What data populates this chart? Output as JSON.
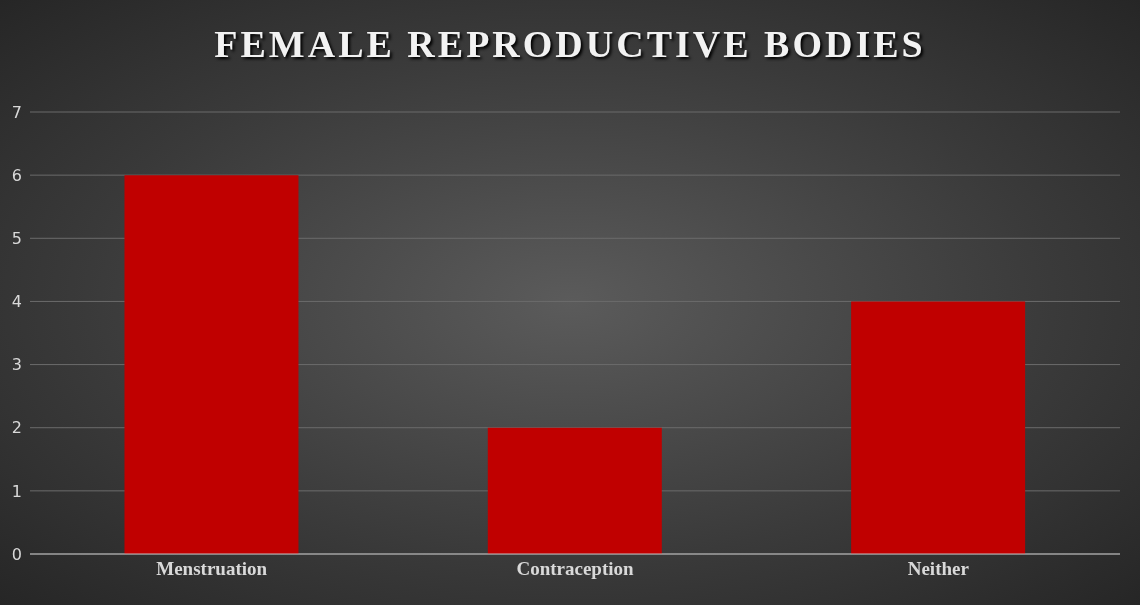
{
  "chart_data": {
    "type": "bar",
    "title": "FEMALE REPRODUCTIVE BODIES",
    "categories": [
      "Menstruation",
      "Contraception",
      "Neither"
    ],
    "values": [
      6,
      2,
      4
    ],
    "color": "#c00000",
    "ylim": [
      0,
      7
    ],
    "yticks": [
      0,
      1,
      2,
      3,
      4,
      5,
      6,
      7
    ],
    "grid": "y"
  }
}
